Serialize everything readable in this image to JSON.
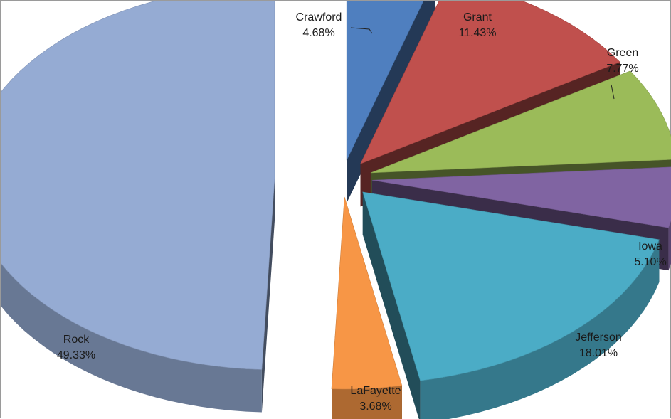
{
  "chart_data": {
    "type": "pie",
    "title": "",
    "categories": [
      "Crawford",
      "Grant",
      "Green",
      "Iowa",
      "Jefferson",
      "LaFayette",
      "Rock"
    ],
    "values": [
      4.68,
      11.43,
      7.77,
      5.1,
      18.01,
      3.68,
      49.33
    ],
    "value_labels": [
      "4.68%",
      "11.43%",
      "7.77%",
      "5.10%",
      "18.01%",
      "3.68%",
      "49.33%"
    ],
    "colors": [
      "#4f7fbf",
      "#c0504d",
      "#9bbb59",
      "#8064a2",
      "#4bacc6",
      "#f79646",
      "#95abd3"
    ],
    "exploded": true,
    "three_d": true,
    "legend": "none"
  }
}
